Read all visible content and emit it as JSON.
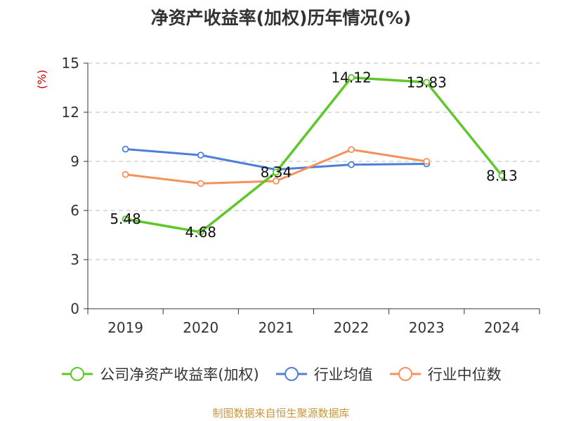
{
  "chart_data": {
    "type": "line",
    "title": "净资产收益率(加权)历年情况(%)",
    "ylabel": "(%)",
    "categories": [
      "2019",
      "2020",
      "2021",
      "2022",
      "2023",
      "2024"
    ],
    "ylim": [
      0,
      15
    ],
    "yticks": [
      0,
      3,
      6,
      9,
      12,
      15
    ],
    "grid": true,
    "series": [
      {
        "name": "公司净资产收益率(加权)",
        "color": "#5ec72a",
        "values": [
          5.48,
          4.68,
          8.34,
          14.12,
          13.83,
          8.13
        ],
        "labels": [
          "5.48",
          "4.68",
          "8.34",
          "14.12",
          "13.83",
          "8.13"
        ]
      },
      {
        "name": "行业均值",
        "color": "#4e7fd8",
        "values": [
          9.75,
          9.38,
          8.5,
          8.8,
          8.85,
          null
        ]
      },
      {
        "name": "行业中位数",
        "color": "#f5915a",
        "values": [
          8.2,
          7.65,
          7.8,
          9.72,
          9.0,
          null
        ]
      }
    ],
    "legend_position": "bottom"
  },
  "source": "制图数据来自恒生聚源数据库"
}
